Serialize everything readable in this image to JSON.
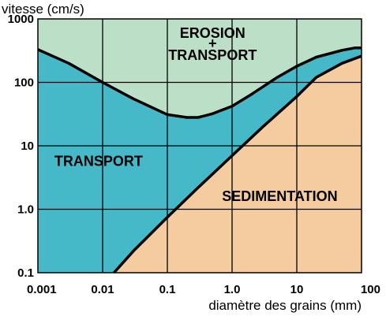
{
  "chart_data": {
    "type": "area",
    "title": "",
    "xlabel": "diamètre des grains (mm)",
    "ylabel": "vitesse (cm/s)",
    "x_scale": "log",
    "y_scale": "log",
    "xlim": [
      0.001,
      100
    ],
    "ylim": [
      0.1,
      1000
    ],
    "grid": true,
    "x_ticks": [
      "0.001",
      "0.01",
      "0.1",
      "1.0",
      "10",
      "100"
    ],
    "y_ticks": [
      "1000",
      "100",
      "10",
      "1.0",
      "0.1"
    ],
    "regions": [
      {
        "label_lines": [
          "EROSION",
          "+",
          "TRANSPORT"
        ],
        "color": "#bcdfc8"
      },
      {
        "label_lines": [
          "TRANSPORT"
        ],
        "color": "#45b9c8"
      },
      {
        "label_lines": [
          "SEDIMENTATION"
        ],
        "color": "#f5cba0"
      }
    ],
    "series": [
      {
        "role": "erosion-threshold",
        "x": [
          0.001,
          0.003,
          0.01,
          0.03,
          0.1,
          0.2,
          0.3,
          0.5,
          1,
          2,
          5,
          10,
          20,
          50,
          80,
          100
        ],
        "y": [
          330,
          200,
          100,
          55,
          31,
          28,
          28,
          32,
          42,
          65,
          120,
          180,
          250,
          320,
          350,
          350
        ]
      },
      {
        "role": "sedimentation-threshold",
        "x": [
          0.015,
          0.03,
          0.1,
          0.3,
          1,
          3,
          10,
          20,
          50,
          100
        ],
        "y": [
          0.1,
          0.22,
          0.75,
          2.2,
          7,
          20,
          60,
          120,
          200,
          260
        ]
      }
    ]
  }
}
